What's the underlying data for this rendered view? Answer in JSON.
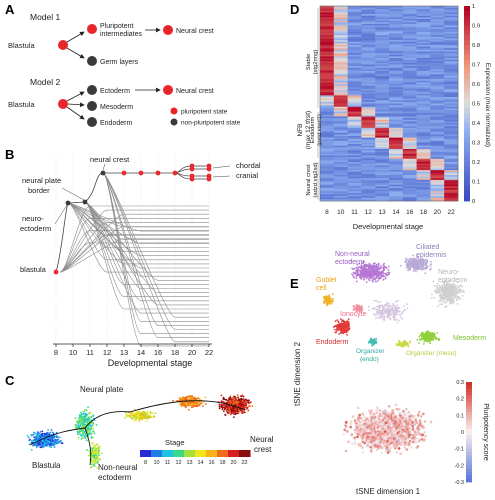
{
  "panel_labels": {
    "a": "A",
    "b": "B",
    "c": "C",
    "d": "D",
    "e": "E"
  },
  "panel_a": {
    "model1_title": "Model 1",
    "model1_blastula": "Blastula",
    "model1_pluripotent_line1": "Pluripotent",
    "model1_pluripotent_line2": "intermediates",
    "model1_neural_crest": "Neural crest",
    "model1_germ_layers": "Germ layers",
    "model2_title": "Model 2",
    "model2_blastula": "Blastula",
    "model2_ectoderm": "Ectoderm",
    "model2_neural_crest": "Neural crest",
    "model2_mesoderm": "Mesoderm",
    "model2_endoderm": "Endoderm",
    "legend_pluripotent": "pluripotent state",
    "legend_nonpluripotent": "non-pluripotent state",
    "color_pluripotent": "#e8262a",
    "color_nonpluripotent": "#3a3a3a"
  },
  "panel_b": {
    "label_neural_crest": "neural crest",
    "label_neural_plate_line1": "neural plate",
    "label_neural_plate_line2": "border",
    "label_neuroectoderm_line1": "neuro-",
    "label_neuroectoderm_line2": "ectoderm",
    "label_blastula": "blastula",
    "label_chordal": "chordal",
    "label_cranial": "cranial",
    "xlabel": "Developmental stage",
    "ticks": [
      "8",
      "10",
      "11",
      "12",
      "13",
      "14",
      "16",
      "18",
      "20",
      "22"
    ]
  },
  "panel_c": {
    "label_neural_plate": "Neural plate",
    "label_blastula": "Blastula",
    "label_non_neural_line1": "Non-neural",
    "label_non_neural_line2": "ectoderm",
    "label_neural_crest_line1": "Neural",
    "label_neural_crest_line2": "crest",
    "colorbar_title": "Stage",
    "colorbar_ticks": [
      "8",
      "10",
      "11",
      "12",
      "13",
      "14",
      "16",
      "18",
      "20",
      "22"
    ]
  },
  "panel_d": {
    "ylabel_main_line1": "NFB",
    "ylabel_main_line2": "(max 12 tfrst)",
    "group_top_line1": "Stable",
    "group_top_line2": "(stg2rmg)",
    "group_mid_line1": "Endoderm",
    "group_mid_line2": "(pstd stsnl1)",
    "group_bot_line1": "Neural crest",
    "group_bot_line2": "(adzd stg2sd)",
    "xlabel": "Developmental stage",
    "colorbar_label": "Expression (max normalized)",
    "colorbar_ticks": [
      "0",
      "0.1",
      "0.2",
      "0.3",
      "0.4",
      "0.5",
      "0.6",
      "0.7",
      "0.8",
      "0.9",
      "1"
    ]
  },
  "panel_e": {
    "label_non_neural_line1": "Non-neural",
    "label_non_neural_line2": "ectoderm",
    "label_ciliated_line1": "Ciliated",
    "label_ciliated_line2": "epidermis",
    "label_neuro_line1": "Neuro-",
    "label_neuro_line2": "ectoderm",
    "label_goblet_line1": "Goblet",
    "label_goblet_line2": "cell",
    "label_ionocyte": "Ionocyte",
    "label_endoderm": "Endoderm",
    "label_mesoderm": "Mesoderm",
    "label_organizer_endo_line1": "Organizer",
    "label_organizer_endo_line2": "(endo)",
    "label_organizer_meso": "Organizer (meso)",
    "ylabel": "tSNE dimension 2",
    "xlabel": "tSNE dimension 1",
    "colorbar_label": "Pluripotency score",
    "colorbar_ticks": [
      "-0.3",
      "-0.2",
      "-0.1",
      "0",
      "0.1",
      "0.2",
      "0.3"
    ]
  },
  "chart_data": [
    {
      "type": "heatmap",
      "panel": "D",
      "xlabel": "Developmental stage",
      "categories": [
        "8",
        "10",
        "11",
        "12",
        "13",
        "14",
        "16",
        "18",
        "20",
        "22"
      ],
      "colorbar_range": [
        0,
        1
      ],
      "colorbar_label": "Expression (max normalized)"
    }
  ]
}
